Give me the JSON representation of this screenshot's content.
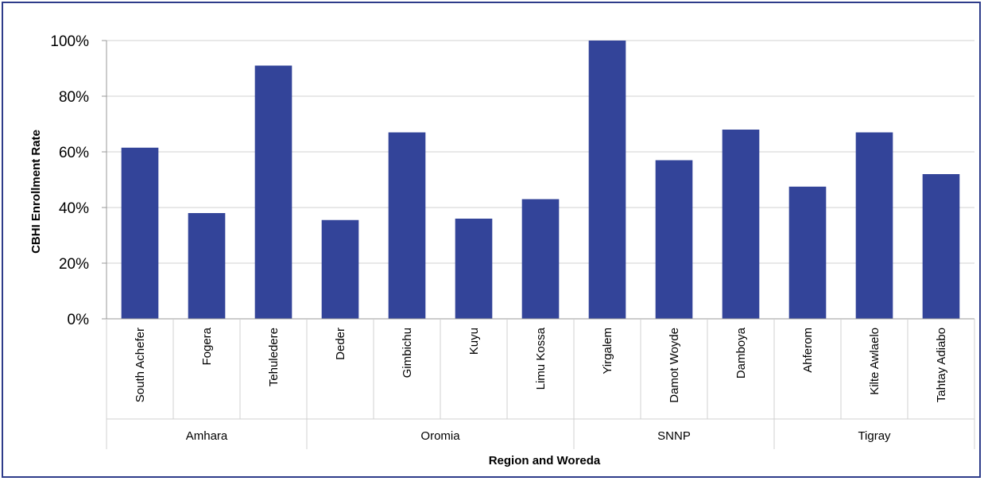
{
  "chart_data": {
    "type": "bar",
    "ylabel": "CBHI Enrollment Rate",
    "xlabel": "Region and Woreda",
    "ylim": [
      0,
      100
    ],
    "ytick_labels": [
      "0%",
      "20%",
      "40%",
      "60%",
      "80%",
      "100%"
    ],
    "yticks": [
      0,
      20,
      40,
      60,
      80,
      100
    ],
    "grid": true,
    "categories": [
      "South Achefer",
      "Fogera",
      "Tehuledere",
      "Deder",
      "Gimbichu",
      "Kuyu",
      "Limu Kossa",
      "Yirgalem",
      "Damot Woyde",
      "Damboya",
      "Ahferom",
      "Kilte Awlaelo",
      "Tahtay Adiabo"
    ],
    "values": [
      61.5,
      38,
      91,
      35.5,
      67,
      36,
      43,
      100,
      57,
      68,
      47.5,
      67,
      52
    ],
    "groups": [
      {
        "name": "Amhara",
        "count": 3
      },
      {
        "name": "Oromia",
        "count": 4
      },
      {
        "name": "SNNP",
        "count": 3
      },
      {
        "name": "Tigray",
        "count": 3
      }
    ],
    "bar_color": "#334499"
  }
}
